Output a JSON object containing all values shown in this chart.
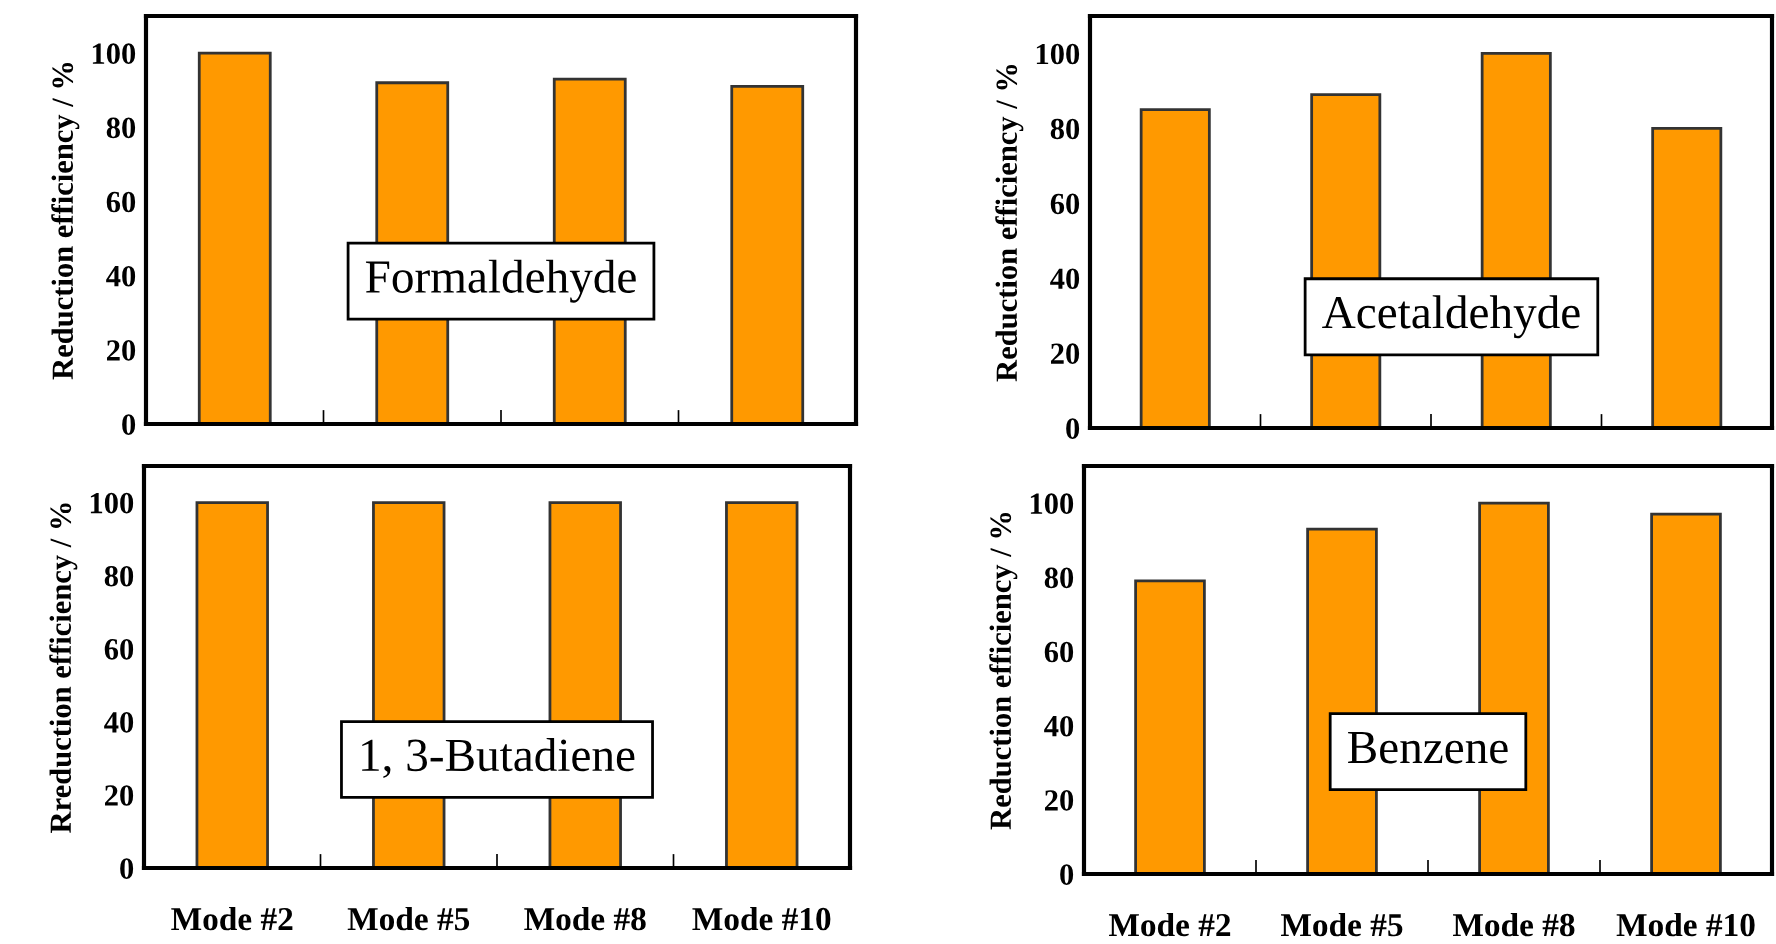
{
  "chart_data": [
    {
      "type": "bar",
      "title": "Formaldehyde",
      "ylabel": "Reduction efficiency / %",
      "categories": [
        null,
        null,
        null,
        null
      ],
      "values": [
        100,
        92,
        93,
        91
      ],
      "color": "#ff9900",
      "ylim": [
        0,
        110
      ],
      "yticks": [
        0,
        20,
        40,
        60,
        80,
        100
      ],
      "grid": false,
      "tick_labels": "y"
    },
    {
      "type": "bar",
      "title": "Acetaldehyde",
      "ylabel": "Reduction efficiency / %",
      "categories": [
        null,
        null,
        null,
        null
      ],
      "values": [
        85,
        89,
        100,
        80
      ],
      "color": "#ff9900",
      "ylim": [
        0,
        110
      ],
      "yticks": [
        0,
        20,
        40,
        60,
        80,
        100
      ],
      "grid": false,
      "tick_labels": "y"
    },
    {
      "type": "bar",
      "title": "1, 3-Butadiene",
      "ylabel": "Rreduction efficiency / %",
      "categories": [
        "Mode #2",
        "Mode #5",
        "Mode #8",
        "Mode #10"
      ],
      "values": [
        100,
        100,
        100,
        100
      ],
      "color": "#ff9900",
      "ylim": [
        0,
        110
      ],
      "yticks": [
        0,
        20,
        40,
        60,
        80,
        100
      ],
      "grid": false
    },
    {
      "type": "bar",
      "title": "Benzene",
      "ylabel": "Reduction efficiency / %",
      "categories": [
        "Mode #2",
        "Mode #5",
        "Mode #8",
        "Mode #10"
      ],
      "values": [
        79,
        93,
        100,
        97
      ],
      "color": "#ff9900",
      "ylim": [
        0,
        110
      ],
      "yticks": [
        0,
        20,
        40,
        60,
        80,
        100
      ],
      "grid": false
    }
  ]
}
